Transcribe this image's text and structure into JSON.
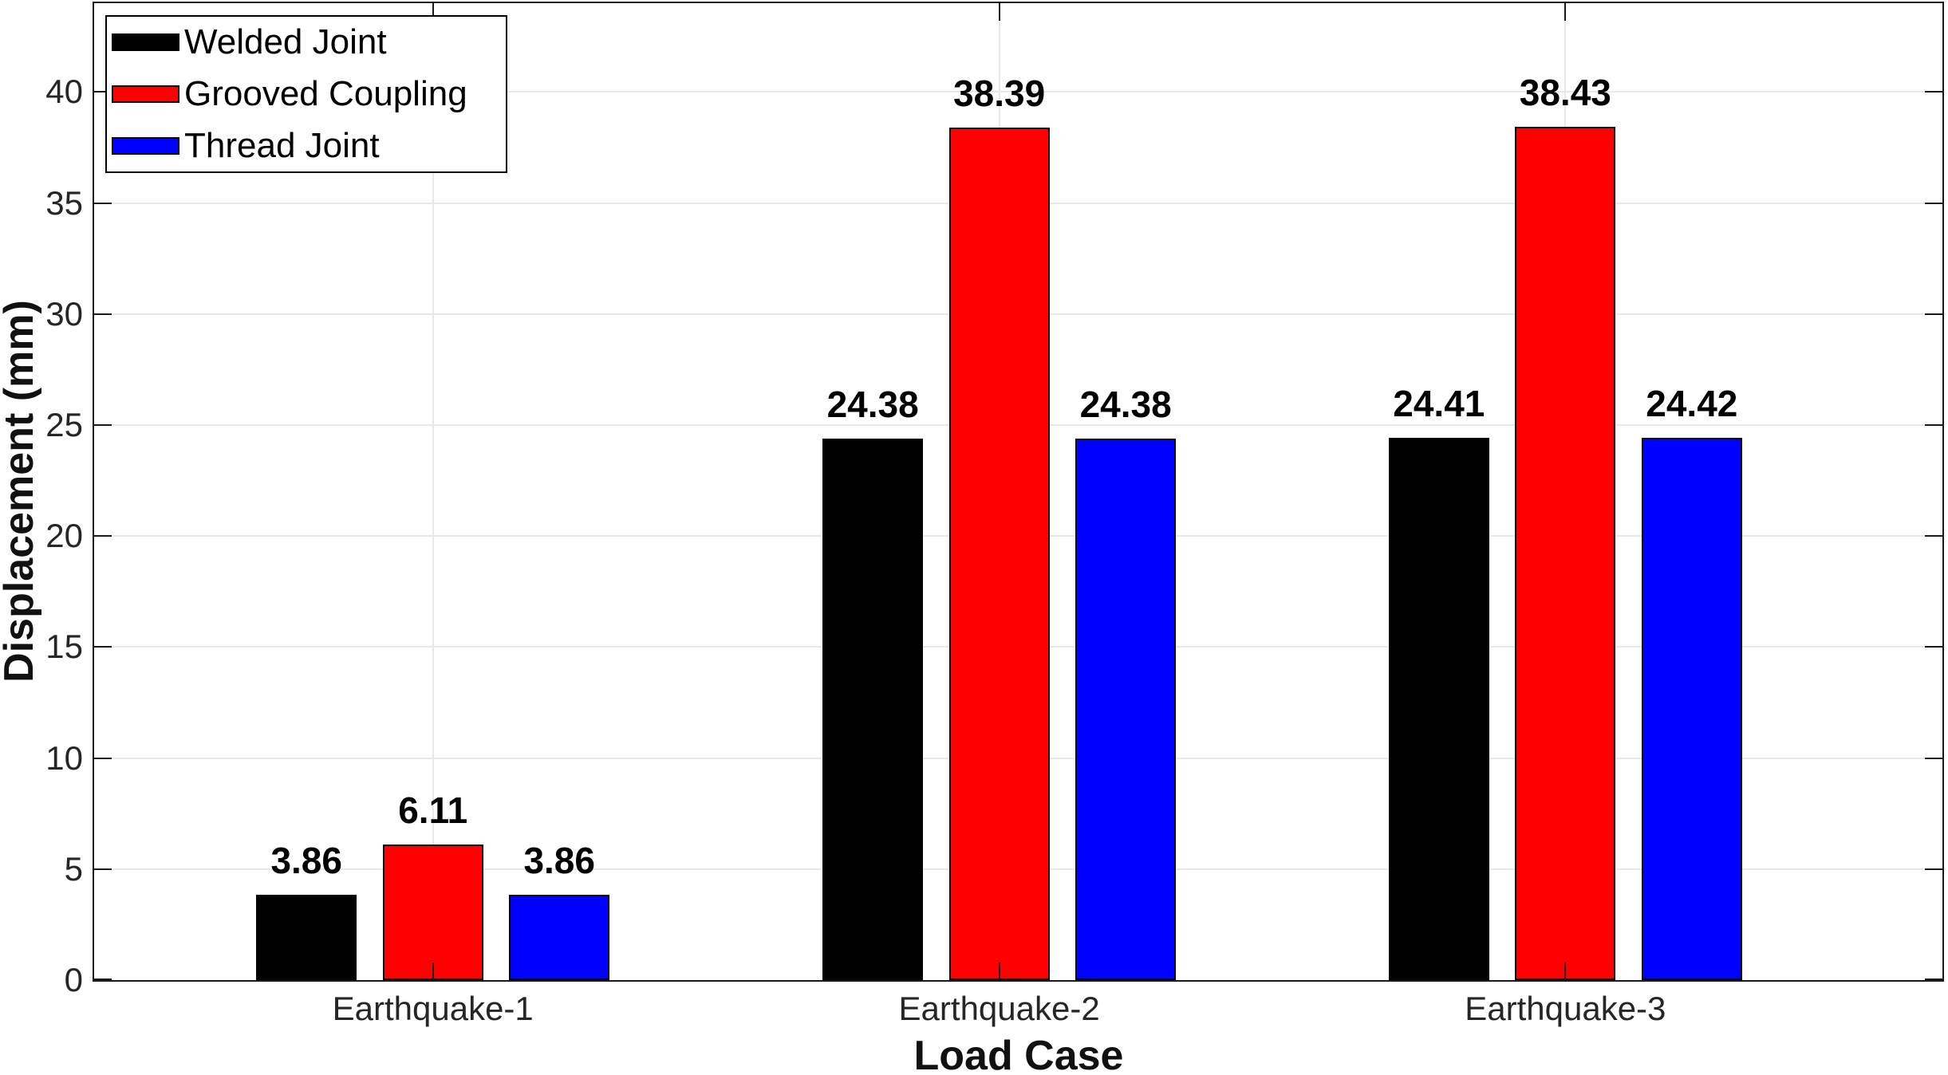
{
  "chart_data": {
    "type": "bar",
    "title": "",
    "xlabel": "Load Case",
    "ylabel": "Displacement (mm)",
    "categories": [
      "Earthquake-1",
      "Earthquake-2",
      "Earthquake-3"
    ],
    "series": [
      {
        "name": "Welded Joint",
        "color": "#000000",
        "values": [
          3.86,
          24.38,
          24.41
        ],
        "labels": [
          "3.86",
          "24.38",
          "24.41"
        ]
      },
      {
        "name": "Grooved Coupling",
        "color": "#ff0000",
        "values": [
          6.11,
          38.39,
          38.43
        ],
        "labels": [
          "6.11",
          "38.39",
          "38.43"
        ]
      },
      {
        "name": "Thread Joint",
        "color": "#0000ff",
        "values": [
          3.86,
          24.38,
          24.42
        ],
        "labels": [
          "3.86",
          "24.38",
          "24.42"
        ]
      }
    ],
    "ylim": [
      0,
      44
    ],
    "yticks": [
      0,
      5,
      10,
      15,
      20,
      25,
      30,
      35,
      40
    ],
    "grid": true,
    "legend_position": "top-left",
    "bar_value_labels_shown": true,
    "colors": {
      "background": "#ffffff",
      "grid": "#e8e8e8",
      "axis": "#1a1a1a",
      "tick_label": "#262626",
      "value_label": "#000000"
    }
  }
}
